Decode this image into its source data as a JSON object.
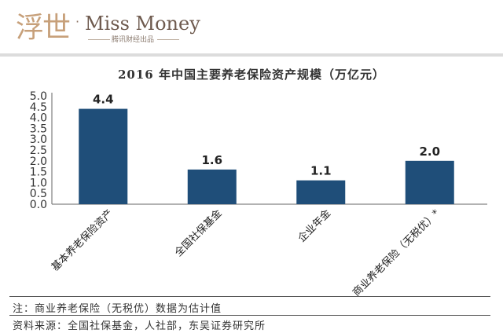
{
  "logo": {
    "mark": "浮世",
    "dot": "·",
    "name": "Miss Money",
    "sub": "腾讯财经出品"
  },
  "chart_data": {
    "type": "bar",
    "title": "2016 年中国主要养老保险资产规模（万亿元）",
    "categories": [
      "基本养老保险资产",
      "全国社保基金",
      "企业年金",
      "商业养老保险（无税优）*"
    ],
    "values": [
      4.4,
      1.6,
      1.1,
      2.0
    ],
    "value_labels": [
      "4.4",
      "1.6",
      "1.1",
      "2.0"
    ],
    "yticks": [
      "0.0",
      "0.5",
      "1.0",
      "1.5",
      "2.0",
      "2.5",
      "3.0",
      "3.5",
      "4.0",
      "4.5",
      "5.0"
    ],
    "ylim": [
      0,
      5.0
    ],
    "grid": false,
    "bar_color": "#1f4e79"
  },
  "notes": {
    "note": "注：商业养老保险（无税优）数据为估计值",
    "source": "资料来源：全国社保基金，人社部，东吴证券研究所"
  }
}
